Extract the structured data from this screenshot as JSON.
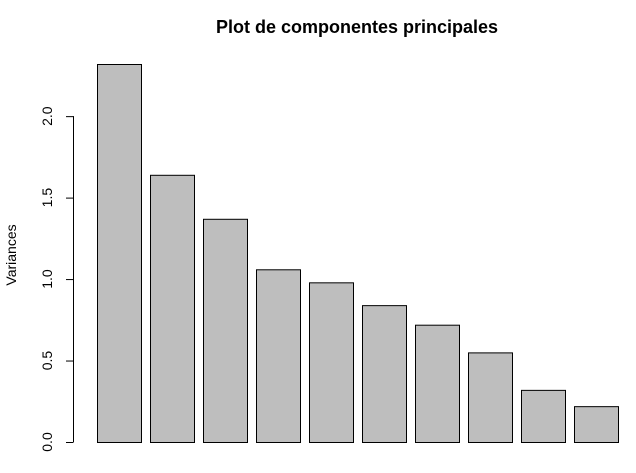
{
  "chart_data": {
    "type": "bar",
    "title": "Plot de componentes principales",
    "xlabel": "",
    "ylabel": "Variances",
    "categories": [
      "",
      "",
      "",
      "",
      "",
      "",
      "",
      "",
      "",
      ""
    ],
    "values": [
      2.32,
      1.64,
      1.37,
      1.06,
      0.98,
      0.84,
      0.72,
      0.55,
      0.32,
      0.22
    ],
    "ylim": [
      0,
      2.32
    ],
    "yticks": [
      0.0,
      0.5,
      1.0,
      1.5,
      2.0
    ],
    "ytick_labels": [
      "0.0",
      "0.5",
      "1.0",
      "1.5",
      "2.0"
    ],
    "bar_color": "#bebebe",
    "edge_color": "#000000",
    "grid": false,
    "legend": "none"
  }
}
